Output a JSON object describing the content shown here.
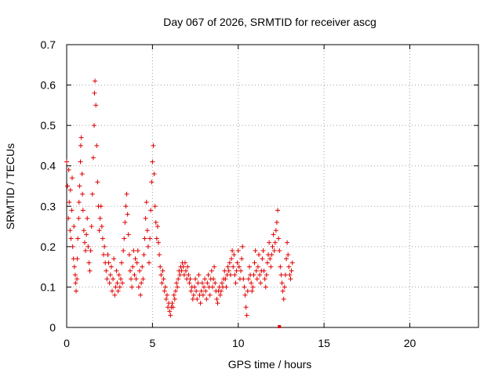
{
  "chart_data": {
    "type": "scatter",
    "title": "Day 067 of 2026, SRMTID for receiver ascg",
    "xlabel": "GPS time / hours",
    "ylabel": "SRMTID / TECUs",
    "xlim": [
      0,
      24
    ],
    "ylim": [
      0,
      0.7
    ],
    "xticks": [
      0,
      5,
      10,
      15,
      20
    ],
    "yticks": [
      0,
      0.1,
      0.2,
      0.3,
      0.4,
      0.5,
      0.6,
      0.7
    ],
    "xtick_labels": [
      "0",
      "5",
      "10",
      "15",
      "20"
    ],
    "ytick_labels": [
      "0",
      "0.1",
      "0.2",
      "0.3",
      "0.4",
      "0.5",
      "0.6",
      "0.7"
    ],
    "grid": true,
    "marker": "plus",
    "color": "#e00000",
    "series": [
      {
        "name": "SRMTID",
        "points": [
          [
            0.0,
            0.41
          ],
          [
            0.05,
            0.35
          ],
          [
            0.1,
            0.27
          ],
          [
            0.12,
            0.39
          ],
          [
            0.15,
            0.31
          ],
          [
            0.2,
            0.24
          ],
          [
            0.22,
            0.34
          ],
          [
            0.25,
            0.22
          ],
          [
            0.3,
            0.29
          ],
          [
            0.32,
            0.37
          ],
          [
            0.35,
            0.2
          ],
          [
            0.4,
            0.17
          ],
          [
            0.42,
            0.25
          ],
          [
            0.45,
            0.15
          ],
          [
            0.5,
            0.13
          ],
          [
            0.52,
            0.11
          ],
          [
            0.55,
            0.09
          ],
          [
            0.6,
            0.12
          ],
          [
            0.62,
            0.17
          ],
          [
            0.65,
            0.22
          ],
          [
            0.7,
            0.27
          ],
          [
            0.72,
            0.31
          ],
          [
            0.75,
            0.35
          ],
          [
            0.8,
            0.41
          ],
          [
            0.82,
            0.45
          ],
          [
            0.85,
            0.47
          ],
          [
            0.9,
            0.38
          ],
          [
            0.92,
            0.33
          ],
          [
            0.95,
            0.29
          ],
          [
            1.0,
            0.24
          ],
          [
            1.05,
            0.21
          ],
          [
            1.1,
            0.19
          ],
          [
            1.15,
            0.23
          ],
          [
            1.2,
            0.27
          ],
          [
            1.25,
            0.2
          ],
          [
            1.3,
            0.16
          ],
          [
            1.35,
            0.14
          ],
          [
            1.4,
            0.19
          ],
          [
            1.45,
            0.25
          ],
          [
            1.5,
            0.33
          ],
          [
            1.55,
            0.42
          ],
          [
            1.6,
            0.5
          ],
          [
            1.62,
            0.58
          ],
          [
            1.65,
            0.61
          ],
          [
            1.7,
            0.55
          ],
          [
            1.75,
            0.45
          ],
          [
            1.8,
            0.36
          ],
          [
            1.85,
            0.3
          ],
          [
            1.9,
            0.24
          ],
          [
            1.95,
            0.27
          ],
          [
            2.0,
            0.3
          ],
          [
            2.05,
            0.25
          ],
          [
            2.1,
            0.22
          ],
          [
            2.15,
            0.18
          ],
          [
            2.2,
            0.2
          ],
          [
            2.25,
            0.16
          ],
          [
            2.3,
            0.14
          ],
          [
            2.35,
            0.12
          ],
          [
            2.4,
            0.18
          ],
          [
            2.45,
            0.16
          ],
          [
            2.5,
            0.11
          ],
          [
            2.55,
            0.13
          ],
          [
            2.6,
            0.15
          ],
          [
            2.65,
            0.09
          ],
          [
            2.7,
            0.12
          ],
          [
            2.75,
            0.17
          ],
          [
            2.8,
            0.08
          ],
          [
            2.85,
            0.1
          ],
          [
            2.9,
            0.14
          ],
          [
            2.95,
            0.11
          ],
          [
            3.0,
            0.09
          ],
          [
            3.05,
            0.13
          ],
          [
            3.1,
            0.1
          ],
          [
            3.15,
            0.12
          ],
          [
            3.2,
            0.16
          ],
          [
            3.25,
            0.11
          ],
          [
            3.3,
            0.19
          ],
          [
            3.35,
            0.22
          ],
          [
            3.4,
            0.26
          ],
          [
            3.45,
            0.3
          ],
          [
            3.5,
            0.33
          ],
          [
            3.55,
            0.28
          ],
          [
            3.6,
            0.23
          ],
          [
            3.65,
            0.18
          ],
          [
            3.7,
            0.14
          ],
          [
            3.75,
            0.12
          ],
          [
            3.8,
            0.1
          ],
          [
            3.85,
            0.15
          ],
          [
            3.9,
            0.19
          ],
          [
            3.95,
            0.13
          ],
          [
            4.0,
            0.17
          ],
          [
            4.05,
            0.12
          ],
          [
            4.1,
            0.16
          ],
          [
            4.15,
            0.19
          ],
          [
            4.2,
            0.1
          ],
          [
            4.25,
            0.14
          ],
          [
            4.3,
            0.08
          ],
          [
            4.35,
            0.11
          ],
          [
            4.4,
            0.15
          ],
          [
            4.45,
            0.12
          ],
          [
            4.5,
            0.18
          ],
          [
            4.55,
            0.22
          ],
          [
            4.6,
            0.27
          ],
          [
            4.65,
            0.31
          ],
          [
            4.7,
            0.24
          ],
          [
            4.75,
            0.2
          ],
          [
            4.8,
            0.16
          ],
          [
            4.85,
            0.22
          ],
          [
            4.9,
            0.29
          ],
          [
            4.95,
            0.36
          ],
          [
            5.0,
            0.41
          ],
          [
            5.05,
            0.45
          ],
          [
            5.1,
            0.38
          ],
          [
            5.15,
            0.3
          ],
          [
            5.2,
            0.26
          ],
          [
            5.25,
            0.22
          ],
          [
            5.3,
            0.25
          ],
          [
            5.35,
            0.21
          ],
          [
            5.4,
            0.18
          ],
          [
            5.45,
            0.15
          ],
          [
            5.5,
            0.13
          ],
          [
            5.55,
            0.11
          ],
          [
            5.6,
            0.14
          ],
          [
            5.65,
            0.12
          ],
          [
            5.7,
            0.09
          ],
          [
            5.75,
            0.1
          ],
          [
            5.8,
            0.07
          ],
          [
            5.85,
            0.08
          ],
          [
            5.9,
            0.05
          ],
          [
            5.95,
            0.06
          ],
          [
            6.0,
            0.04
          ],
          [
            6.05,
            0.03
          ],
          [
            6.1,
            0.05
          ],
          [
            6.15,
            0.06
          ],
          [
            6.2,
            0.05
          ],
          [
            6.25,
            0.08
          ],
          [
            6.3,
            0.07
          ],
          [
            6.35,
            0.09
          ],
          [
            6.4,
            0.11
          ],
          [
            6.45,
            0.1
          ],
          [
            6.5,
            0.12
          ],
          [
            6.55,
            0.14
          ],
          [
            6.6,
            0.13
          ],
          [
            6.65,
            0.15
          ],
          [
            6.7,
            0.14
          ],
          [
            6.75,
            0.16
          ],
          [
            6.8,
            0.15
          ],
          [
            6.85,
            0.13
          ],
          [
            6.9,
            0.16
          ],
          [
            6.95,
            0.14
          ],
          [
            7.0,
            0.12
          ],
          [
            7.05,
            0.15
          ],
          [
            7.1,
            0.13
          ],
          [
            7.15,
            0.11
          ],
          [
            7.2,
            0.12
          ],
          [
            7.25,
            0.09
          ],
          [
            7.3,
            0.1
          ],
          [
            7.35,
            0.07
          ],
          [
            7.4,
            0.08
          ],
          [
            7.45,
            0.1
          ],
          [
            7.5,
            0.12
          ],
          [
            7.55,
            0.09
          ],
          [
            7.6,
            0.07
          ],
          [
            7.65,
            0.11
          ],
          [
            7.7,
            0.13
          ],
          [
            7.75,
            0.08
          ],
          [
            7.8,
            0.06
          ],
          [
            7.85,
            0.09
          ],
          [
            7.9,
            0.11
          ],
          [
            7.95,
            0.08
          ],
          [
            8.0,
            0.1
          ],
          [
            8.05,
            0.12
          ],
          [
            8.1,
            0.09
          ],
          [
            8.15,
            0.07
          ],
          [
            8.2,
            0.11
          ],
          [
            8.25,
            0.13
          ],
          [
            8.3,
            0.1
          ],
          [
            8.35,
            0.08
          ],
          [
            8.4,
            0.12
          ],
          [
            8.45,
            0.14
          ],
          [
            8.5,
            0.1
          ],
          [
            8.55,
            0.12
          ],
          [
            8.6,
            0.15
          ],
          [
            8.65,
            0.11
          ],
          [
            8.7,
            0.09
          ],
          [
            8.75,
            0.07
          ],
          [
            8.8,
            0.06
          ],
          [
            8.85,
            0.09
          ],
          [
            8.9,
            0.1
          ],
          [
            8.95,
            0.08
          ],
          [
            9.0,
            0.09
          ],
          [
            9.05,
            0.11
          ],
          [
            9.1,
            0.1
          ],
          [
            9.15,
            0.12
          ],
          [
            9.2,
            0.14
          ],
          [
            9.25,
            0.12
          ],
          [
            9.3,
            0.1
          ],
          [
            9.35,
            0.13
          ],
          [
            9.4,
            0.15
          ],
          [
            9.45,
            0.14
          ],
          [
            9.5,
            0.16
          ],
          [
            9.55,
            0.13
          ],
          [
            9.6,
            0.17
          ],
          [
            9.65,
            0.19
          ],
          [
            9.7,
            0.15
          ],
          [
            9.75,
            0.18
          ],
          [
            9.8,
            0.13
          ],
          [
            9.85,
            0.11
          ],
          [
            9.9,
            0.14
          ],
          [
            9.95,
            0.16
          ],
          [
            10.0,
            0.19
          ],
          [
            10.05,
            0.15
          ],
          [
            10.1,
            0.12
          ],
          [
            10.15,
            0.14
          ],
          [
            10.2,
            0.17
          ],
          [
            10.25,
            0.2
          ],
          [
            10.3,
            0.12
          ],
          [
            10.35,
            0.1
          ],
          [
            10.4,
            0.08
          ],
          [
            10.45,
            0.05
          ],
          [
            10.5,
            0.03
          ],
          [
            10.55,
            0.09
          ],
          [
            10.6,
            0.12
          ],
          [
            10.65,
            0.15
          ],
          [
            10.7,
            0.13
          ],
          [
            10.75,
            0.11
          ],
          [
            10.8,
            0.09
          ],
          [
            10.85,
            0.1
          ],
          [
            10.9,
            0.13
          ],
          [
            10.95,
            0.16
          ],
          [
            11.0,
            0.19
          ],
          [
            11.05,
            0.14
          ],
          [
            11.1,
            0.12
          ],
          [
            11.15,
            0.15
          ],
          [
            11.2,
            0.18
          ],
          [
            11.25,
            0.13
          ],
          [
            11.3,
            0.11
          ],
          [
            11.35,
            0.14
          ],
          [
            11.4,
            0.17
          ],
          [
            11.45,
            0.19
          ],
          [
            11.5,
            0.14
          ],
          [
            11.55,
            0.12
          ],
          [
            11.6,
            0.1
          ],
          [
            11.65,
            0.13
          ],
          [
            11.7,
            0.16
          ],
          [
            11.75,
            0.18
          ],
          [
            11.8,
            0.21
          ],
          [
            11.85,
            0.17
          ],
          [
            11.9,
            0.15
          ],
          [
            11.95,
            0.18
          ],
          [
            12.0,
            0.2
          ],
          [
            12.05,
            0.23
          ],
          [
            12.1,
            0.19
          ],
          [
            12.15,
            0.21
          ],
          [
            12.2,
            0.24
          ],
          [
            12.25,
            0.26
          ],
          [
            12.3,
            0.29
          ],
          [
            12.35,
            0.22
          ],
          [
            12.4,
            0.19
          ],
          [
            12.45,
            0.15
          ],
          [
            12.5,
            0.13
          ],
          [
            12.55,
            0.11
          ],
          [
            12.6,
            0.09
          ],
          [
            12.65,
            0.07
          ],
          [
            12.7,
            0.1
          ],
          [
            12.75,
            0.13
          ],
          [
            12.8,
            0.17
          ],
          [
            12.85,
            0.21
          ],
          [
            12.9,
            0.18
          ],
          [
            12.95,
            0.15
          ],
          [
            13.0,
            0.13
          ],
          [
            13.05,
            0.12
          ],
          [
            13.1,
            0.14
          ],
          [
            13.15,
            0.16
          ]
        ]
      }
    ],
    "annotations": [
      {
        "x": 12.4,
        "y": 0.0,
        "marker": "square"
      }
    ]
  }
}
